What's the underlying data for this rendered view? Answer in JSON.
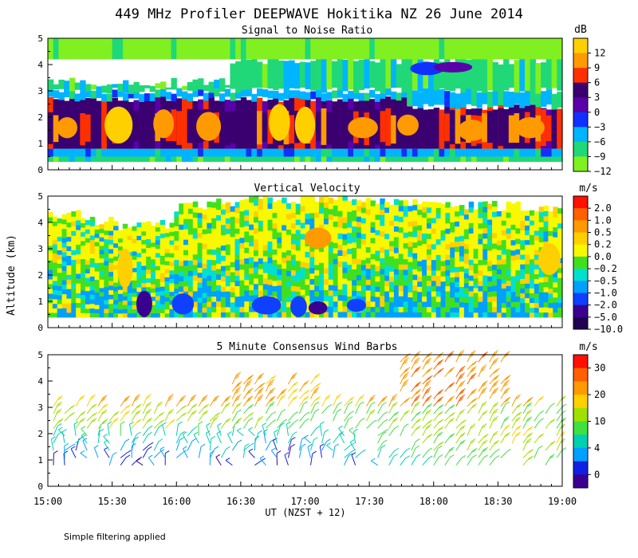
{
  "figure_title": "449 MHz Profiler DEEPWAVE Hokitika NZ 26 June 2014",
  "xlabel": "UT  (NZST + 12)",
  "ylabel": "Altitude (km)",
  "footnote": "Simple filtering applied",
  "colors": {
    "bg": "#ffffff",
    "axis": "#000000"
  },
  "chart_data": [
    {
      "type": "heatmap",
      "title": "Signal to Noise Ratio",
      "unit": "dB",
      "x": [
        "15:00",
        "15:30",
        "16:00",
        "16:30",
        "17:00",
        "17:30",
        "18:00",
        "18:30",
        "19:00"
      ],
      "xlim": [
        15.0,
        19.0
      ],
      "ylim": [
        0,
        5
      ],
      "yticks": [
        "0",
        "1",
        "2",
        "3",
        "4",
        "5"
      ],
      "colorbar": {
        "labels": [
          "12",
          "9",
          "6",
          "3",
          "0",
          "−3",
          "−6",
          "−9",
          "−12"
        ],
        "colors": [
          "#ffd000",
          "#ff9a00",
          "#ff3000",
          "#3a0070",
          "#5a00a8",
          "#1030ff",
          "#00b4ff",
          "#20d878",
          "#80f020"
        ]
      },
      "layers": [
        {
          "name": "surface",
          "ybot": 0.3,
          "ytop": 0.5,
          "value": -9
        },
        {
          "name": "low",
          "ybot": 0.5,
          "ytop": 0.8,
          "value": -6
        },
        {
          "name": "band",
          "ybot": 0.8,
          "ytop": 2.7,
          "value": 3
        },
        {
          "name": "above-band",
          "ybot": 2.7,
          "ytop": 3.0,
          "value": -6
        },
        {
          "name": "mid",
          "ybot": 3.0,
          "ytop": 4.2,
          "value": -9
        },
        {
          "name": "upper",
          "ybot": 4.2,
          "ytop": 5.0,
          "value": -12
        }
      ],
      "patches": [
        {
          "t": 15.15,
          "ybot": 1.2,
          "ytop": 2.0,
          "value": 9
        },
        {
          "t": 15.55,
          "ybot": 1.0,
          "ytop": 2.4,
          "value": 12
        },
        {
          "t": 15.9,
          "ybot": 1.2,
          "ytop": 2.3,
          "value": 9
        },
        {
          "t": 16.25,
          "ybot": 1.1,
          "ytop": 2.2,
          "value": 9
        },
        {
          "t": 16.8,
          "ybot": 1.1,
          "ytop": 2.5,
          "value": 12
        },
        {
          "t": 17.0,
          "ybot": 1.0,
          "ytop": 2.4,
          "value": 12
        },
        {
          "t": 17.45,
          "ybot": 1.2,
          "ytop": 2.0,
          "value": 9
        },
        {
          "t": 17.8,
          "ybot": 1.3,
          "ytop": 2.1,
          "value": 9
        },
        {
          "t": 18.3,
          "ybot": 1.1,
          "ytop": 1.9,
          "value": 9
        },
        {
          "t": 18.75,
          "ybot": 1.2,
          "ytop": 2.0,
          "value": 9
        },
        {
          "t": 17.95,
          "ybot": 3.6,
          "ytop": 4.1,
          "value": -3
        },
        {
          "t": 18.15,
          "ybot": 3.7,
          "ytop": 4.1,
          "value": 0
        }
      ]
    },
    {
      "type": "heatmap",
      "title": "Vertical Velocity",
      "unit": "m/s",
      "x": [
        "15:00",
        "15:30",
        "16:00",
        "16:30",
        "17:00",
        "17:30",
        "18:00",
        "18:30",
        "19:00"
      ],
      "xlim": [
        15.0,
        19.0
      ],
      "ylim": [
        0,
        5
      ],
      "yticks": [
        "0",
        "1",
        "2",
        "3",
        "4",
        "5"
      ],
      "colorbar": {
        "labels": [
          "2.0",
          "1.0",
          "0.5",
          "0.2",
          "0.0",
          "−0.2",
          "−0.5",
          "−1.0",
          "−2.0",
          "−5.0",
          "−10.0"
        ],
        "colors": [
          "#ff1000",
          "#ff6000",
          "#ff9a00",
          "#ffd000",
          "#f8f800",
          "#40e020",
          "#00e0d0",
          "#00a0ff",
          "#1040ff",
          "#3a0090",
          "#200050"
        ]
      },
      "data_top_km": [
        4.3,
        4.1,
        3.9,
        3.9,
        4.6,
        4.8,
        4.9,
        4.9,
        4.9,
        4.9,
        4.8,
        4.8,
        4.7,
        4.7,
        4.6,
        4.5
      ],
      "patches": [
        {
          "t": 15.6,
          "ybot": 1.5,
          "ytop": 3.0,
          "value": 0.2
        },
        {
          "t": 15.75,
          "ybot": 0.4,
          "ytop": 1.4,
          "value": -5.0
        },
        {
          "t": 16.05,
          "ybot": 0.5,
          "ytop": 1.3,
          "value": -2.0
        },
        {
          "t": 16.7,
          "ybot": 0.5,
          "ytop": 1.2,
          "value": -2.0
        },
        {
          "t": 16.95,
          "ybot": 0.4,
          "ytop": 1.2,
          "value": -2.0
        },
        {
          "t": 17.1,
          "ybot": 0.5,
          "ytop": 1.0,
          "value": -5.0
        },
        {
          "t": 17.4,
          "ybot": 0.6,
          "ytop": 1.1,
          "value": -2.0
        },
        {
          "t": 17.1,
          "ybot": 3.0,
          "ytop": 3.8,
          "value": 0.5
        },
        {
          "t": 18.9,
          "ybot": 2.0,
          "ytop": 3.2,
          "value": 0.2
        }
      ]
    },
    {
      "type": "wind_barbs",
      "title": "5 Minute Consensus Wind Barbs",
      "unit": "m/s",
      "x": [
        "15:00",
        "15:30",
        "16:00",
        "16:30",
        "17:00",
        "17:30",
        "18:00",
        "18:30",
        "19:00"
      ],
      "xlim": [
        15.0,
        19.0
      ],
      "ylim": [
        0,
        5
      ],
      "yticks": [
        "0",
        "1",
        "2",
        "3",
        "4",
        "5"
      ],
      "colorbar": {
        "labels": [
          "30",
          "20",
          "10",
          "4",
          "0"
        ],
        "colors": [
          "#ff1000",
          "#ff6000",
          "#ff9a00",
          "#ffd000",
          "#a0e000",
          "#40e040",
          "#00d0b0",
          "#00a0ff",
          "#1020e0",
          "#3a0090"
        ]
      },
      "profiles": [
        {
          "t": 15.05,
          "low": 2,
          "mid": 12,
          "high": 16
        },
        {
          "t": 15.45,
          "low": 3,
          "mid": 14,
          "high": 18
        },
        {
          "t": 15.9,
          "low": 2,
          "mid": 13,
          "high": 18
        },
        {
          "t": 16.35,
          "low": 3,
          "mid": 12,
          "high": 20
        },
        {
          "t": 16.85,
          "low": 2,
          "mid": 10,
          "high": 17
        },
        {
          "t": 17.35,
          "low": 3,
          "mid": 9,
          "high": 16
        },
        {
          "t": 17.85,
          "low": 8,
          "mid": 12,
          "high": 22
        },
        {
          "t": 18.35,
          "low": 10,
          "mid": 12,
          "high": 22
        },
        {
          "t": 18.85,
          "low": 10,
          "mid": 10,
          "high": 14
        }
      ]
    }
  ]
}
